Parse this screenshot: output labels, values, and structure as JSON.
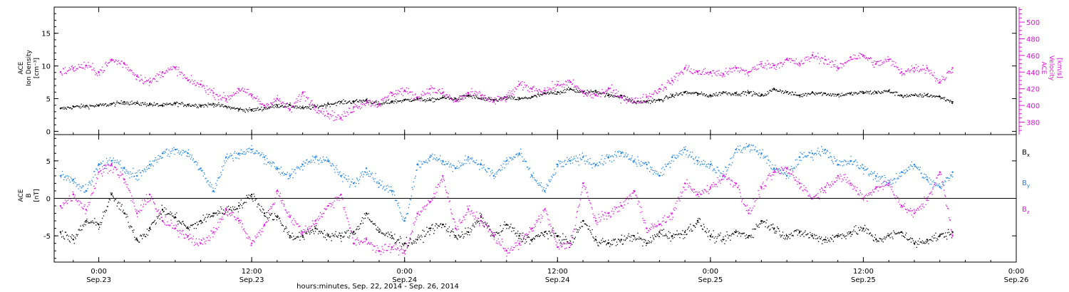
{
  "chart_data": {
    "type": "scatter",
    "xlabel": "hours:minutes, Sep. 22, 2014 - Sep. 26, 2014",
    "x_axis": {
      "units": "hours since 2014-09-22 00:00 UT",
      "range": [
        20.5,
        96
      ],
      "ticks": [
        {
          "x": 24,
          "time": "0:00",
          "date": "Sep.23"
        },
        {
          "x": 36,
          "time": "12:00",
          "date": "Sep.23"
        },
        {
          "x": 48,
          "time": "0:00",
          "date": "Sep.24"
        },
        {
          "x": 60,
          "time": "12:00",
          "date": "Sep.24"
        },
        {
          "x": 72,
          "time": "0:00",
          "date": "Sep.25"
        },
        {
          "x": 84,
          "time": "12:00",
          "date": "Sep.25"
        },
        {
          "x": 96,
          "time": "0:00",
          "date": "Sep.26"
        }
      ]
    },
    "panels": [
      {
        "id": "density-velocity",
        "ylabel_lines": [
          "ACE",
          "Ion Density",
          "[cm⁻³]"
        ],
        "ylim": [
          -0.5,
          19
        ],
        "yticks": [
          0,
          5,
          10,
          15
        ],
        "right_axis": {
          "label_lines": [
            "ACE",
            "Velocity",
            "[km/s]"
          ],
          "ylim": [
            365,
            518
          ],
          "ticks": [
            380,
            400,
            420,
            440,
            460,
            480,
            500
          ],
          "color": "#e010e0"
        },
        "series": [
          {
            "color": "#000000",
            "axis": "left",
            "x": [
              21,
              22,
              23,
              24,
              25,
              26,
              27,
              28,
              29,
              30,
              31,
              32,
              33,
              34,
              35,
              36,
              37,
              38,
              39,
              40,
              41,
              42,
              43,
              44,
              45,
              46,
              47,
              48,
              49,
              50,
              51,
              52,
              53,
              54,
              55,
              56,
              57,
              58,
              59,
              60,
              61,
              62,
              63,
              64,
              65,
              66,
              67,
              68,
              69,
              70,
              71,
              72,
              73,
              74,
              75,
              76,
              77,
              78,
              79,
              80,
              81,
              82,
              83,
              84,
              85,
              86,
              87,
              88,
              89,
              90,
              91
            ],
            "values": [
              3.5,
              3.8,
              3.9,
              4.0,
              4.2,
              4.5,
              4.3,
              4.2,
              4.0,
              4.3,
              4.1,
              4.0,
              4.2,
              3.8,
              3.4,
              3.3,
              3.6,
              4.0,
              4.0,
              3.6,
              3.8,
              4.2,
              4.5,
              4.6,
              4.8,
              4.2,
              4.6,
              4.8,
              5.0,
              4.8,
              5.2,
              5.0,
              5.5,
              5.0,
              4.8,
              5.2,
              5.0,
              5.3,
              5.8,
              6.0,
              6.5,
              6.0,
              6.2,
              5.5,
              5.5,
              4.5,
              4.6,
              4.8,
              5.5,
              6.0,
              5.8,
              5.5,
              6.0,
              5.8,
              6.0,
              5.5,
              6.5,
              6.0,
              5.5,
              6.0,
              5.8,
              5.6,
              5.8,
              6.0,
              6.0,
              6.2,
              5.5,
              5.5,
              5.6,
              5.3,
              4.5
            ]
          },
          {
            "color": "#e010e0",
            "axis": "right",
            "x": [
              21,
              22,
              23,
              24,
              25,
              26,
              27,
              28,
              29,
              30,
              31,
              32,
              33,
              34,
              35,
              36,
              37,
              38,
              39,
              40,
              41,
              42,
              43,
              44,
              45,
              46,
              47,
              48,
              49,
              50,
              51,
              52,
              53,
              54,
              55,
              56,
              57,
              58,
              59,
              60,
              61,
              62,
              63,
              64,
              65,
              66,
              67,
              68,
              69,
              70,
              71,
              72,
              73,
              74,
              75,
              76,
              77,
              78,
              79,
              80,
              81,
              82,
              83,
              84,
              85,
              86,
              87,
              88,
              89,
              90,
              91
            ],
            "values": [
              440,
              445,
              448,
              440,
              455,
              450,
              435,
              428,
              440,
              445,
              430,
              425,
              415,
              408,
              420,
              412,
              400,
              408,
              395,
              415,
              398,
              390,
              385,
              398,
              405,
              402,
              415,
              418,
              410,
              420,
              415,
              405,
              415,
              412,
              405,
              410,
              425,
              420,
              418,
              425,
              428,
              415,
              412,
              420,
              410,
              405,
              410,
              420,
              430,
              445,
              440,
              440,
              438,
              445,
              440,
              450,
              448,
              455,
              450,
              460,
              455,
              445,
              458,
              460,
              450,
              455,
              440,
              445,
              445,
              428,
              445
            ]
          }
        ]
      },
      {
        "id": "magnetic-field",
        "ylabel_lines": [
          "ACE",
          "B",
          "[nT]"
        ],
        "ylim": [
          -8.5,
          8.5
        ],
        "yticks": [
          -5,
          0,
          5
        ],
        "zero_line": true,
        "series": [
          {
            "name": "Bx",
            "color": "#000000",
            "x": [
              21,
              22,
              23,
              24,
              25,
              26,
              27,
              28,
              29,
              30,
              31,
              32,
              33,
              34,
              35,
              36,
              37,
              38,
              39,
              40,
              41,
              42,
              43,
              44,
              45,
              46,
              47,
              48,
              49,
              50,
              51,
              52,
              53,
              54,
              55,
              56,
              57,
              58,
              59,
              60,
              61,
              62,
              63,
              64,
              65,
              66,
              67,
              68,
              69,
              70,
              71,
              72,
              73,
              74,
              75,
              76,
              77,
              78,
              79,
              80,
              81,
              82,
              83,
              84,
              85,
              86,
              87,
              88,
              89,
              90,
              91
            ],
            "values": [
              -4.5,
              -5.5,
              -3.0,
              -3.5,
              0.5,
              -2.0,
              -5.5,
              -4.0,
              -1.5,
              -2.5,
              -4.0,
              -3.0,
              -2.0,
              -1.5,
              -1.0,
              0.5,
              -2.0,
              -2.5,
              -5.0,
              -5.0,
              -4.0,
              -5.0,
              -5.0,
              -4.5,
              -2.0,
              -4.5,
              -5.0,
              -6.0,
              -5.5,
              -4.0,
              -3.5,
              -5.0,
              -4.5,
              -2.5,
              -5.0,
              -3.5,
              -5.0,
              -5.5,
              -4.5,
              -5.0,
              -6.0,
              -3.0,
              -5.5,
              -6.0,
              -5.5,
              -5.0,
              -6.0,
              -4.5,
              -5.0,
              -4.5,
              -3.0,
              -5.0,
              -5.5,
              -4.5,
              -5.0,
              -3.0,
              -4.0,
              -5.0,
              -4.5,
              -5.0,
              -5.5,
              -5.0,
              -4.5,
              -4.0,
              -5.5,
              -5.0,
              -4.5,
              -6.0,
              -5.5,
              -5.0,
              -4.5
            ]
          },
          {
            "name": "By",
            "color": "#1a82e6",
            "x": [
              21,
              22,
              23,
              24,
              25,
              26,
              27,
              28,
              29,
              30,
              31,
              32,
              33,
              34,
              35,
              36,
              37,
              38,
              39,
              40,
              41,
              42,
              43,
              44,
              45,
              46,
              47,
              48,
              49,
              50,
              51,
              52,
              53,
              54,
              55,
              56,
              57,
              58,
              59,
              60,
              61,
              62,
              63,
              64,
              65,
              66,
              67,
              68,
              69,
              70,
              71,
              72,
              73,
              74,
              75,
              76,
              77,
              78,
              79,
              80,
              81,
              82,
              83,
              84,
              85,
              86,
              87,
              88,
              89,
              90,
              91
            ],
            "values": [
              3.0,
              2.5,
              1.0,
              4.5,
              5.0,
              4.0,
              3.0,
              4.5,
              6.0,
              6.5,
              6.0,
              4.0,
              1.0,
              5.5,
              6.0,
              6.5,
              5.5,
              4.0,
              3.0,
              4.5,
              5.5,
              5.0,
              3.0,
              2.0,
              4.0,
              2.0,
              1.0,
              -3.0,
              4.5,
              5.5,
              5.0,
              4.0,
              5.5,
              4.5,
              3.0,
              5.0,
              6.0,
              3.0,
              1.0,
              4.5,
              5.0,
              5.5,
              4.5,
              5.5,
              6.0,
              5.0,
              4.5,
              3.0,
              5.5,
              6.5,
              5.0,
              4.5,
              3.0,
              6.5,
              7.0,
              6.0,
              4.0,
              3.0,
              5.5,
              6.0,
              6.5,
              4.5,
              5.0,
              4.0,
              3.0,
              2.0,
              3.5,
              4.5,
              2.5,
              1.5,
              3.5
            ]
          },
          {
            "name": "Bz",
            "color": "#e010e0",
            "x": [
              21,
              22,
              23,
              24,
              25,
              26,
              27,
              28,
              29,
              30,
              31,
              32,
              33,
              34,
              35,
              36,
              37,
              38,
              39,
              40,
              41,
              42,
              43,
              44,
              45,
              46,
              47,
              48,
              49,
              50,
              51,
              52,
              53,
              54,
              55,
              56,
              57,
              58,
              59,
              60,
              61,
              62,
              63,
              64,
              65,
              66,
              67,
              68,
              69,
              70,
              71,
              72,
              73,
              74,
              75,
              76,
              77,
              78,
              79,
              80,
              81,
              82,
              83,
              84,
              85,
              86,
              87,
              88,
              89,
              90,
              91
            ],
            "values": [
              -1.0,
              0.5,
              -1.5,
              3.5,
              4.5,
              2.5,
              -2.0,
              0.5,
              -3.0,
              -4.0,
              -5.0,
              -6.0,
              -4.5,
              -1.5,
              -3.0,
              -6.0,
              -3.5,
              1.0,
              -2.5,
              -4.5,
              -3.0,
              -1.0,
              0.5,
              -6.0,
              -5.5,
              -7.0,
              -6.5,
              -7.0,
              -2.0,
              -0.5,
              3.0,
              -4.0,
              -1.5,
              -3.0,
              -5.0,
              -7.0,
              -6.0,
              -4.0,
              -1.5,
              -6.5,
              -6.0,
              2.0,
              -3.0,
              -2.0,
              -1.0,
              1.0,
              -4.0,
              -3.5,
              -2.0,
              2.0,
              0.5,
              1.5,
              3.0,
              2.0,
              -2.0,
              1.5,
              3.5,
              4.0,
              2.0,
              0.0,
              1.5,
              3.0,
              2.0,
              0.0,
              1.5,
              2.0,
              -1.0,
              -2.0,
              0.0,
              3.5,
              -5.0
            ]
          }
        ]
      }
    ],
    "legend": {
      "placement": "right of lower panel",
      "entries": [
        {
          "name": "Bx",
          "base": "B",
          "sub": "x",
          "color": "#000000"
        },
        {
          "name": "By",
          "base": "B",
          "sub": "y",
          "color": "#1a82e6"
        },
        {
          "name": "Bz",
          "base": "B",
          "sub": "z",
          "color": "#e010e0"
        }
      ]
    }
  }
}
